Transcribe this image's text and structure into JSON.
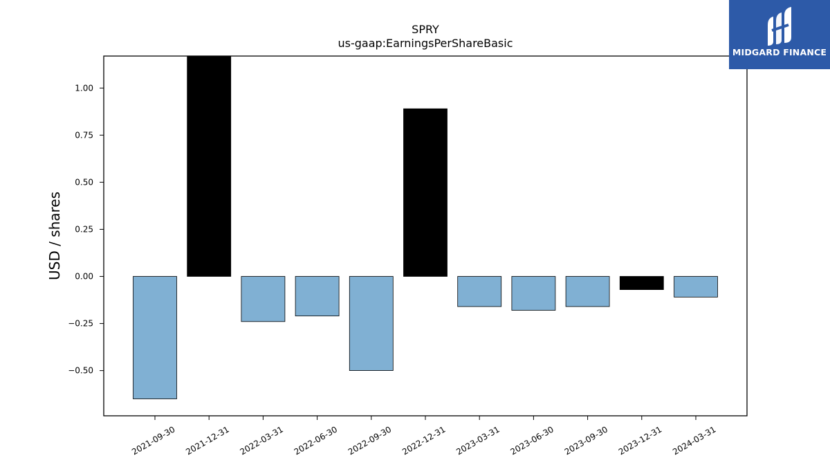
{
  "chart_data": {
    "type": "bar",
    "title": "SPRY",
    "subtitle": "us-gaap:EarningsPerShareBasic",
    "xlabel": "",
    "ylabel": "USD / shares",
    "categories": [
      "2021-09-30",
      "2021-12-31",
      "2022-03-31",
      "2022-06-30",
      "2022-09-30",
      "2022-12-31",
      "2023-03-31",
      "2023-06-30",
      "2023-09-30",
      "2023-12-31",
      "2024-03-31"
    ],
    "values": [
      -0.65,
      1.17,
      -0.24,
      -0.21,
      -0.5,
      0.89,
      -0.16,
      -0.18,
      -0.16,
      -0.07,
      -0.11
    ],
    "bar_colors": [
      "#80b0d3",
      "#000000",
      "#80b0d3",
      "#80b0d3",
      "#80b0d3",
      "#000000",
      "#80b0d3",
      "#80b0d3",
      "#80b0d3",
      "#000000",
      "#80b0d3"
    ],
    "yticks": [
      -0.5,
      -0.25,
      0.0,
      0.25,
      0.5,
      0.75,
      1.0
    ],
    "ytick_labels": [
      "−0.50",
      "−0.25",
      "0.00",
      "0.25",
      "0.50",
      "0.75",
      "1.00"
    ],
    "ylim": [
      -0.74,
      1.17
    ],
    "grid": false,
    "legend": "none"
  },
  "logo": {
    "text": "MIDGARD FINANCE",
    "background": "#2d5aa8"
  }
}
